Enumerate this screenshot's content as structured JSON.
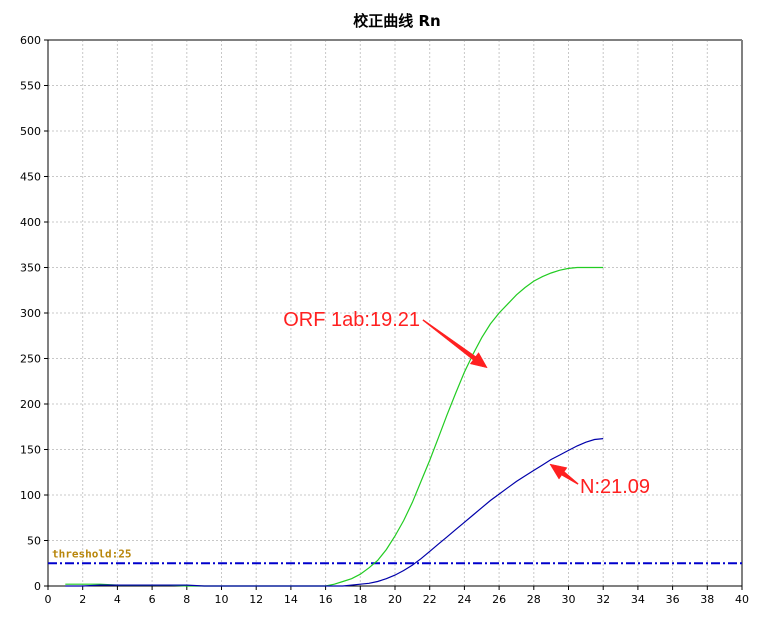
{
  "chart_data": {
    "type": "line",
    "title": "校正曲线 Rn",
    "xlabel": "",
    "ylabel": "",
    "xlim": [
      0,
      40
    ],
    "ylim": [
      0,
      600
    ],
    "x_ticks": [
      0,
      2,
      4,
      6,
      8,
      10,
      12,
      14,
      16,
      18,
      20,
      22,
      24,
      26,
      28,
      30,
      32,
      34,
      36,
      38,
      40
    ],
    "y_ticks": [
      0,
      50,
      100,
      150,
      200,
      250,
      300,
      350,
      400,
      450,
      500,
      550,
      600
    ],
    "grid": true,
    "legend": "none",
    "threshold": {
      "label": "threshold:25",
      "value": 25,
      "color": "#0000cc",
      "label_color": "#b8860b"
    },
    "series": [
      {
        "color": "#22cc22",
        "x": [
          1,
          2,
          3,
          4,
          5,
          6,
          7,
          8,
          9,
          10,
          11,
          12,
          13,
          14,
          15,
          16,
          16.5,
          17,
          17.5,
          18,
          18.5,
          19,
          19.5,
          20,
          20.5,
          21,
          21.5,
          22,
          22.5,
          23,
          23.5,
          24,
          24.5,
          25,
          25.5,
          26,
          26.5,
          27,
          27.5,
          28,
          28.5,
          29,
          29.5,
          30,
          30.5,
          31,
          31.5,
          32
        ],
        "y": [
          2,
          2,
          2,
          1,
          1,
          1,
          1,
          0,
          0,
          0,
          0,
          0,
          0,
          0,
          0,
          0,
          2,
          5,
          8,
          13,
          20,
          28,
          40,
          55,
          72,
          92,
          115,
          138,
          163,
          188,
          212,
          235,
          255,
          273,
          288,
          300,
          310,
          320,
          328,
          335,
          340,
          344,
          347,
          349,
          350,
          350,
          350,
          350
        ]
      },
      {
        "color": "#0000aa",
        "x": [
          1,
          2,
          3,
          4,
          5,
          6,
          7,
          8,
          9,
          10,
          11,
          12,
          13,
          14,
          15,
          16,
          16.5,
          17,
          17.5,
          18,
          18.5,
          19,
          19.5,
          20,
          20.5,
          21,
          21.5,
          22,
          22.5,
          23,
          23.5,
          24,
          24.5,
          25,
          25.5,
          26,
          26.5,
          27,
          27.5,
          28,
          28.5,
          29,
          29.5,
          30,
          30.5,
          31,
          31.5,
          32
        ],
        "y": [
          0,
          0,
          1,
          1,
          1,
          1,
          1,
          1,
          0,
          0,
          0,
          0,
          0,
          0,
          0,
          0,
          0,
          0,
          1,
          2,
          3,
          5,
          8,
          12,
          17,
          23,
          30,
          38,
          46,
          54,
          62,
          70,
          78,
          86,
          94,
          101,
          108,
          115,
          121,
          127,
          133,
          139,
          144,
          149,
          154,
          158,
          161,
          162
        ]
      }
    ],
    "annotations": [
      {
        "text": "ORF 1ab:19.21",
        "color": "#ff2020",
        "target_x": 25.2,
        "target_y": 242
      },
      {
        "text": "N:21.09",
        "color": "#ff2020",
        "target_x": 28.7,
        "target_y": 135
      }
    ]
  }
}
